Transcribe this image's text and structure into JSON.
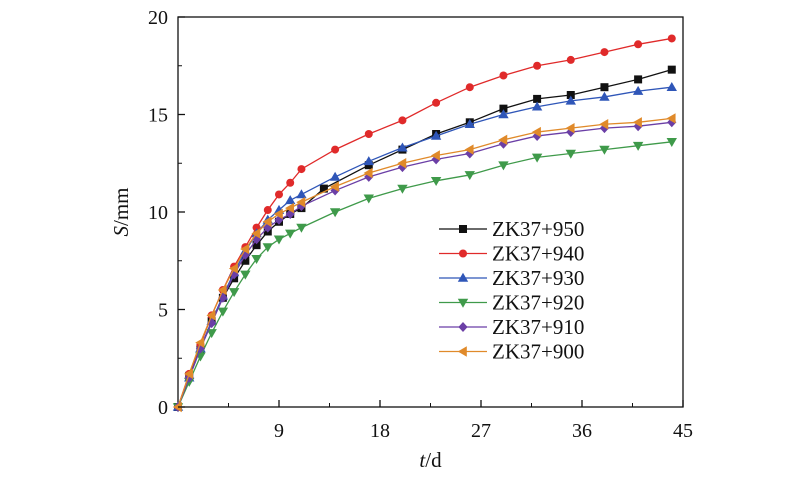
{
  "chart_data": {
    "type": "line",
    "xlabel": {
      "italic": "t",
      "rest": "/d"
    },
    "ylabel": {
      "italic": "S",
      "rest": "/mm"
    },
    "xlim": [
      0,
      45
    ],
    "ylim": [
      0,
      20
    ],
    "xticks": [
      9,
      18,
      27,
      36,
      45
    ],
    "yticks": [
      0,
      5,
      10,
      15,
      20
    ],
    "xtick_labels": [
      "9",
      "18",
      "27",
      "36",
      "45"
    ],
    "ytick_labels": [
      "0",
      "5",
      "10",
      "15",
      "20"
    ],
    "grid": false,
    "legend_position": "center-right",
    "series": [
      {
        "name": "ZK37+950",
        "color": "#111111",
        "marker": "square",
        "points": [
          [
            0,
            0
          ],
          [
            1,
            1.6
          ],
          [
            2,
            3.0
          ],
          [
            3,
            4.4
          ],
          [
            4,
            5.6
          ],
          [
            5,
            6.6
          ],
          [
            6,
            7.5
          ],
          [
            7,
            8.3
          ],
          [
            8,
            9.0
          ],
          [
            9,
            9.5
          ],
          [
            10,
            9.9
          ],
          [
            11,
            10.2
          ],
          [
            13,
            11.2
          ],
          [
            17,
            12.4
          ],
          [
            20,
            13.2
          ],
          [
            23,
            14.0
          ],
          [
            26,
            14.6
          ],
          [
            29,
            15.3
          ],
          [
            32,
            15.8
          ],
          [
            35,
            16.0
          ],
          [
            38,
            16.4
          ],
          [
            41,
            16.8
          ],
          [
            44,
            17.3
          ]
        ]
      },
      {
        "name": "ZK37+940",
        "color": "#e02a2a",
        "marker": "circle",
        "points": [
          [
            0,
            0
          ],
          [
            1,
            1.7
          ],
          [
            2,
            3.2
          ],
          [
            3,
            4.7
          ],
          [
            4,
            6.0
          ],
          [
            5,
            7.2
          ],
          [
            6,
            8.2
          ],
          [
            7,
            9.2
          ],
          [
            8,
            10.1
          ],
          [
            9,
            10.9
          ],
          [
            10,
            11.5
          ],
          [
            11,
            12.2
          ],
          [
            14,
            13.2
          ],
          [
            17,
            14.0
          ],
          [
            20,
            14.7
          ],
          [
            23,
            15.6
          ],
          [
            26,
            16.4
          ],
          [
            29,
            17.0
          ],
          [
            32,
            17.5
          ],
          [
            35,
            17.8
          ],
          [
            38,
            18.2
          ],
          [
            41,
            18.6
          ],
          [
            44,
            18.9
          ]
        ]
      },
      {
        "name": "ZK37+930",
        "color": "#2f56b8",
        "marker": "triangle-up",
        "points": [
          [
            0,
            0
          ],
          [
            1,
            1.5
          ],
          [
            2,
            3.0
          ],
          [
            3,
            4.4
          ],
          [
            4,
            5.7
          ],
          [
            5,
            6.9
          ],
          [
            6,
            8.0
          ],
          [
            7,
            8.9
          ],
          [
            8,
            9.6
          ],
          [
            9,
            10.1
          ],
          [
            10,
            10.6
          ],
          [
            11,
            10.9
          ],
          [
            14,
            11.8
          ],
          [
            17,
            12.6
          ],
          [
            20,
            13.3
          ],
          [
            23,
            13.9
          ],
          [
            26,
            14.5
          ],
          [
            29,
            15.0
          ],
          [
            32,
            15.4
          ],
          [
            35,
            15.7
          ],
          [
            38,
            15.9
          ],
          [
            41,
            16.2
          ],
          [
            44,
            16.4
          ]
        ]
      },
      {
        "name": "ZK37+920",
        "color": "#3f9a4a",
        "marker": "triangle-down",
        "points": [
          [
            0,
            0
          ],
          [
            1,
            1.3
          ],
          [
            2,
            2.6
          ],
          [
            3,
            3.8
          ],
          [
            4,
            4.9
          ],
          [
            5,
            5.9
          ],
          [
            6,
            6.8
          ],
          [
            7,
            7.6
          ],
          [
            8,
            8.2
          ],
          [
            9,
            8.6
          ],
          [
            10,
            8.9
          ],
          [
            11,
            9.2
          ],
          [
            14,
            10.0
          ],
          [
            17,
            10.7
          ],
          [
            20,
            11.2
          ],
          [
            23,
            11.6
          ],
          [
            26,
            11.9
          ],
          [
            29,
            12.4
          ],
          [
            32,
            12.8
          ],
          [
            35,
            13.0
          ],
          [
            38,
            13.2
          ],
          [
            41,
            13.4
          ],
          [
            44,
            13.6
          ]
        ]
      },
      {
        "name": "ZK37+910",
        "color": "#6b3fa6",
        "marker": "diamond",
        "points": [
          [
            0,
            0
          ],
          [
            1,
            1.5
          ],
          [
            2,
            3.0
          ],
          [
            3,
            4.3
          ],
          [
            4,
            5.6
          ],
          [
            5,
            6.8
          ],
          [
            6,
            7.8
          ],
          [
            7,
            8.6
          ],
          [
            8,
            9.2
          ],
          [
            9,
            9.6
          ],
          [
            10,
            9.9
          ],
          [
            11,
            10.3
          ],
          [
            14,
            11.1
          ],
          [
            17,
            11.8
          ],
          [
            20,
            12.3
          ],
          [
            23,
            12.7
          ],
          [
            26,
            13.0
          ],
          [
            29,
            13.5
          ],
          [
            32,
            13.9
          ],
          [
            35,
            14.1
          ],
          [
            38,
            14.3
          ],
          [
            41,
            14.4
          ],
          [
            44,
            14.6
          ]
        ]
      },
      {
        "name": "ZK37+900",
        "color": "#e08a2a",
        "marker": "triangle-left",
        "points": [
          [
            0,
            0
          ],
          [
            1,
            1.7
          ],
          [
            2,
            3.3
          ],
          [
            3,
            4.7
          ],
          [
            4,
            6.0
          ],
          [
            5,
            7.1
          ],
          [
            6,
            8.1
          ],
          [
            7,
            8.9
          ],
          [
            8,
            9.5
          ],
          [
            9,
            9.9
          ],
          [
            10,
            10.2
          ],
          [
            11,
            10.5
          ],
          [
            14,
            11.3
          ],
          [
            17,
            12.0
          ],
          [
            20,
            12.5
          ],
          [
            23,
            12.9
          ],
          [
            26,
            13.2
          ],
          [
            29,
            13.7
          ],
          [
            32,
            14.1
          ],
          [
            35,
            14.3
          ],
          [
            38,
            14.5
          ],
          [
            41,
            14.6
          ],
          [
            44,
            14.8
          ]
        ]
      }
    ]
  }
}
